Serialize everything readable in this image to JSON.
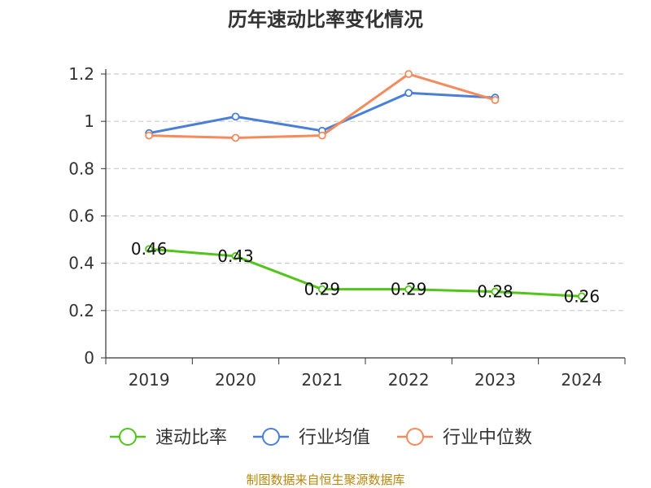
{
  "chart_data": {
    "type": "line",
    "title": "历年速动比率变化情况",
    "categories": [
      "2019",
      "2020",
      "2021",
      "2022",
      "2023",
      "2024"
    ],
    "y_ticks": [
      "0",
      "0.2",
      "0.4",
      "0.6",
      "0.8",
      "1",
      "1.2"
    ],
    "ylim": [
      0,
      1.2
    ],
    "grid": true,
    "legend_position": "bottom",
    "series": [
      {
        "name": "速动比率",
        "color": "#52c41a",
        "values": [
          0.46,
          0.43,
          0.29,
          0.29,
          0.28,
          0.26
        ],
        "labels": [
          "0.46",
          "0.43",
          "0.29",
          "0.29",
          "0.28",
          "0.26"
        ]
      },
      {
        "name": "行业均值",
        "color": "#4a7fd9",
        "values": [
          0.95,
          1.02,
          0.96,
          1.12,
          1.1,
          null
        ]
      },
      {
        "name": "行业中位数",
        "color": "#f58b5c",
        "values": [
          0.94,
          0.93,
          0.94,
          1.2,
          1.09,
          null
        ]
      }
    ]
  },
  "source": "制图数据来自恒生聚源数据库"
}
